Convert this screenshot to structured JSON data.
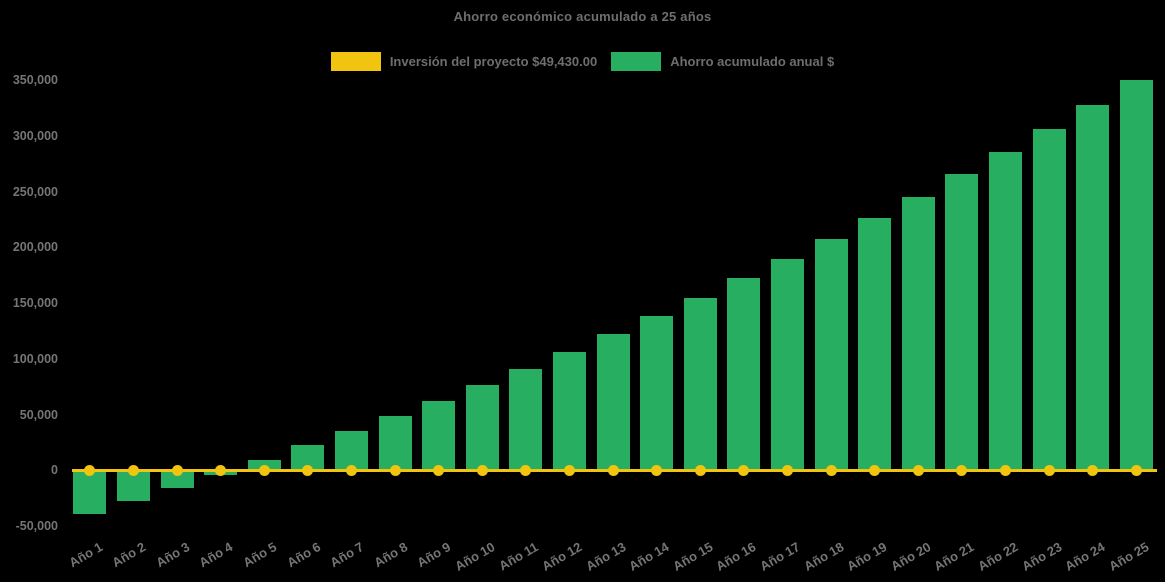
{
  "title": "Ahorro económico acumulado a 25 años",
  "colors": {
    "background": "#000000",
    "investment_yellow": "#F1C40F",
    "savings_green": "#27AE60",
    "title_text": "#6E6E6E",
    "tick_text": "#757575"
  },
  "legend": {
    "items": [
      {
        "label": "Inversión del proyecto $49,430.00",
        "color": "#F1C40F"
      },
      {
        "label": "Ahorro acumulado anual $",
        "color": "#27AE60"
      }
    ]
  },
  "chart_data": {
    "type": "bar",
    "title": "Ahorro económico acumulado a 25 años",
    "categories": [
      "Año 1",
      "Año 2",
      "Año 3",
      "Año 4",
      "Año 5",
      "Año 6",
      "Año 7",
      "Año 8",
      "Año 9",
      "Año 10",
      "Año 11",
      "Año 12",
      "Año 13",
      "Año 14",
      "Año 15",
      "Año 16",
      "Año 17",
      "Año 18",
      "Año 19",
      "Año 20",
      "Año 21",
      "Año 22",
      "Año 23",
      "Año 24",
      "Año 25"
    ],
    "series": [
      {
        "name": "Inversión del proyecto $49,430.00",
        "type": "line",
        "color": "#F1C40F",
        "marker": "circle",
        "values": [
          0,
          0,
          0,
          0,
          0,
          0,
          0,
          0,
          0,
          0,
          0,
          0,
          0,
          0,
          0,
          0,
          0,
          0,
          0,
          0,
          0,
          0,
          0,
          0,
          0
        ]
      },
      {
        "name": "Ahorro acumulado anual $",
        "type": "bar",
        "color": "#27AE60",
        "values": [
          -39000,
          -27400,
          -15700,
          -4000,
          8800,
          22300,
          35500,
          48700,
          62400,
          76500,
          91100,
          106100,
          121900,
          138700,
          154900,
          172500,
          189900,
          207800,
          226400,
          245300,
          265900,
          285600,
          306300,
          327800,
          350300
        ]
      }
    ],
    "ylim": [
      -50000,
      350000
    ],
    "ytick_step": 50000,
    "yticks": [
      {
        "value": 350000,
        "label": "350,000"
      },
      {
        "value": 300000,
        "label": "300,000"
      },
      {
        "value": 250000,
        "label": "250,000"
      },
      {
        "value": 200000,
        "label": "200,000"
      },
      {
        "value": 150000,
        "label": "150,000"
      },
      {
        "value": 100000,
        "label": "100,000"
      },
      {
        "value": 50000,
        "label": "50,000"
      },
      {
        "value": 0,
        "label": "0"
      },
      {
        "value": -50000,
        "label": "-50,000"
      }
    ],
    "grid": false,
    "legend_position": "top",
    "x_label_rotation_deg": -30
  }
}
